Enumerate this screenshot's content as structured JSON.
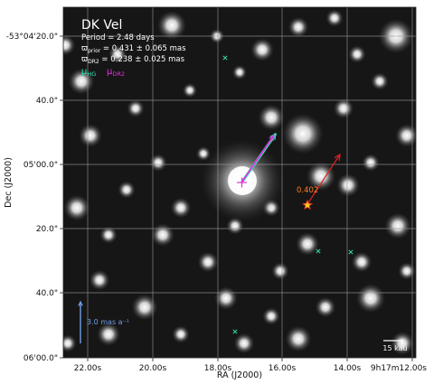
{
  "chart_data": {
    "type": "scatter",
    "title": "DK Vel",
    "info_lines": [
      {
        "text": "Period =  2.48 days"
      },
      {
        "pre": "ϖ",
        "sub": "prior",
        "post": " = 0.431 ± 0.065 mas"
      },
      {
        "pre": "ϖ",
        "sub": "DR2",
        "post": " = 0.238 ± 0.025 mas"
      }
    ],
    "legend": [
      {
        "pre": "μ",
        "sub": "HG",
        "color": "#33e0b0"
      },
      {
        "pre": "μ",
        "sub": "DR2",
        "color": "#e030e0"
      }
    ],
    "xlabel": "RA (J2000)",
    "ylabel": "Dec (J2000)",
    "x_ticks": [
      "22.00s",
      "20.00s",
      "18.00s",
      "16.00s",
      "14.00s",
      "9h17m12.00s"
    ],
    "y_ticks": [
      "-53°04'20.0\"",
      "40.0\"",
      "05'00.0\"",
      "20.0\"",
      "40.0\"",
      "06'00.0\""
    ],
    "grid": true,
    "target": {
      "name": "DK Vel",
      "ra": "9h17m16.8s",
      "dec": "-53°05'04\""
    },
    "neighbour": {
      "label": "0.402",
      "ra": "9h17m14.4s",
      "dec": "-53°05'11\""
    },
    "teal_marks": [
      {
        "ra": "9h17m17.5s",
        "dec": "-53°04'30\""
      },
      {
        "ra": "9h17m13.6s",
        "dec": "-53°05'28\""
      },
      {
        "ra": "9h17m12.4s",
        "dec": "-53°05'29\""
      },
      {
        "ra": "9h17m17.1s",
        "dec": "-53°05'52\""
      }
    ],
    "scale_arrow_label": "3.0 mas a⁻¹",
    "scale_bar_label": "15 kau",
    "colors": {
      "hg": "#33e0b0",
      "dr2": "#e030e0",
      "neighbour_arrow": "#e02020",
      "scale_arrow": "#6fa0e8",
      "star_marker": "#f2d020",
      "grid": "#9a9a9a"
    }
  }
}
